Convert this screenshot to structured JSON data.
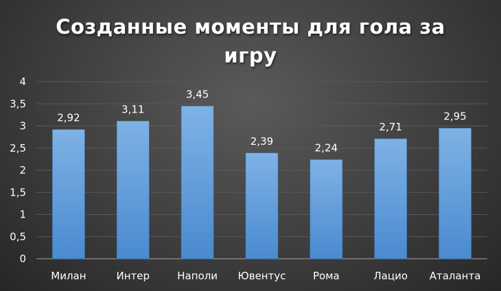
{
  "chart_data": {
    "type": "bar",
    "title": "Созданные  моменты для гола за\nигру",
    "categories": [
      "Милан",
      "Интер",
      "Наполи",
      "Ювентус",
      "Рома",
      "Лацио",
      "Аталанта"
    ],
    "values": [
      2.92,
      3.11,
      3.45,
      2.39,
      2.24,
      2.71,
      2.95
    ],
    "data_labels": [
      "2,92",
      "3,11",
      "3,45",
      "2,39",
      "2,24",
      "2,71",
      "2,95"
    ],
    "y_ticks": [
      "0",
      "0,5",
      "1",
      "1,5",
      "2",
      "2,5",
      "3",
      "3,5",
      "4"
    ],
    "ylim": [
      0,
      4
    ],
    "xlabel": "",
    "ylabel": "",
    "grid": true,
    "legend": "none",
    "bar_color": "#5b9bd5"
  }
}
